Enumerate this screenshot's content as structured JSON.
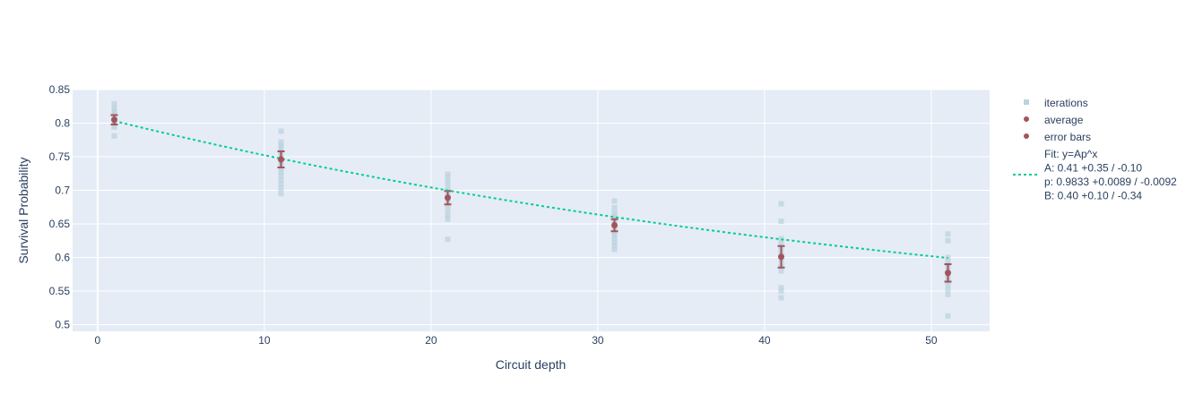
{
  "chart_data": {
    "type": "scatter",
    "xlabel": "Circuit depth",
    "ylabel": "Survival Probability",
    "xlim": [
      -1.5,
      53.5
    ],
    "ylim": [
      0.49,
      0.85
    ],
    "xticks": [
      "0",
      "10",
      "20",
      "30",
      "40",
      "50"
    ],
    "yticks": [
      "0.5",
      "0.55",
      "0.6",
      "0.65",
      "0.7",
      "0.75",
      "0.8",
      "0.85"
    ],
    "grid": true,
    "legend_position": "right",
    "colors": {
      "plot_bg": "#e5ecf6",
      "grid": "#ffffff",
      "iterations": "#bcd3df",
      "average": "#a3545b",
      "error_bars": "#a3545b",
      "fit": "#00cc96"
    },
    "series": [
      {
        "name": "iterations",
        "marker": "square",
        "points": [
          [
            1,
            0.829
          ],
          [
            1,
            0.823
          ],
          [
            1,
            0.818
          ],
          [
            1,
            0.815
          ],
          [
            1,
            0.812
          ],
          [
            1,
            0.809
          ],
          [
            1,
            0.806
          ],
          [
            1,
            0.803
          ],
          [
            1,
            0.8
          ],
          [
            1,
            0.797
          ],
          [
            1,
            0.794
          ],
          [
            1,
            0.781
          ],
          [
            11,
            0.788
          ],
          [
            11,
            0.772
          ],
          [
            11,
            0.768
          ],
          [
            11,
            0.764
          ],
          [
            11,
            0.76
          ],
          [
            11,
            0.756
          ],
          [
            11,
            0.752
          ],
          [
            11,
            0.748
          ],
          [
            11,
            0.744
          ],
          [
            11,
            0.74
          ],
          [
            11,
            0.736
          ],
          [
            11,
            0.732
          ],
          [
            11,
            0.727
          ],
          [
            11,
            0.722
          ],
          [
            11,
            0.716
          ],
          [
            11,
            0.71
          ],
          [
            11,
            0.703
          ],
          [
            11,
            0.695
          ],
          [
            21,
            0.724
          ],
          [
            21,
            0.72
          ],
          [
            21,
            0.714
          ],
          [
            21,
            0.707
          ],
          [
            21,
            0.7
          ],
          [
            21,
            0.694
          ],
          [
            21,
            0.69
          ],
          [
            21,
            0.686
          ],
          [
            21,
            0.682
          ],
          [
            21,
            0.676
          ],
          [
            21,
            0.668
          ],
          [
            21,
            0.662
          ],
          [
            21,
            0.657
          ],
          [
            21,
            0.627
          ],
          [
            31,
            0.684
          ],
          [
            31,
            0.674
          ],
          [
            31,
            0.666
          ],
          [
            31,
            0.662
          ],
          [
            31,
            0.658
          ],
          [
            31,
            0.654
          ],
          [
            31,
            0.65
          ],
          [
            31,
            0.646
          ],
          [
            31,
            0.642
          ],
          [
            31,
            0.637
          ],
          [
            31,
            0.633
          ],
          [
            31,
            0.628
          ],
          [
            31,
            0.622
          ],
          [
            31,
            0.617
          ],
          [
            31,
            0.612
          ],
          [
            41,
            0.68
          ],
          [
            41,
            0.654
          ],
          [
            41,
            0.628
          ],
          [
            41,
            0.622
          ],
          [
            41,
            0.616
          ],
          [
            41,
            0.61
          ],
          [
            41,
            0.604
          ],
          [
            41,
            0.598
          ],
          [
            41,
            0.592
          ],
          [
            41,
            0.586
          ],
          [
            41,
            0.58
          ],
          [
            41,
            0.555
          ],
          [
            41,
            0.55
          ],
          [
            41,
            0.54
          ],
          [
            51,
            0.635
          ],
          [
            51,
            0.625
          ],
          [
            51,
            0.6
          ],
          [
            51,
            0.595
          ],
          [
            51,
            0.59
          ],
          [
            51,
            0.585
          ],
          [
            51,
            0.58
          ],
          [
            51,
            0.575
          ],
          [
            51,
            0.57
          ],
          [
            51,
            0.565
          ],
          [
            51,
            0.56
          ],
          [
            51,
            0.553
          ],
          [
            51,
            0.545
          ],
          [
            51,
            0.513
          ]
        ]
      },
      {
        "name": "average",
        "marker": "circle",
        "x": [
          1,
          11,
          21,
          31,
          41,
          51
        ],
        "y": [
          0.805,
          0.746,
          0.689,
          0.648,
          0.601,
          0.577
        ]
      },
      {
        "name": "error bars",
        "marker": "circle",
        "x": [
          1,
          11,
          21,
          31,
          41,
          51
        ],
        "y": [
          0.805,
          0.746,
          0.689,
          0.648,
          0.601,
          0.577
        ],
        "error": [
          0.007,
          0.012,
          0.01,
          0.009,
          0.016,
          0.013
        ]
      },
      {
        "name": "Fit: y=Ap^x",
        "name_lines": [
          "Fit: y=Ap^x",
          "A: 0.41 +0.35 / -0.10",
          "p: 0.9833 +0.0089 / -0.0092",
          "B: 0.40 +0.10 / -0.34"
        ],
        "line_style": "dotted",
        "x": [
          1,
          3,
          5,
          7,
          9,
          11,
          13,
          15,
          17,
          19,
          21,
          23,
          25,
          27,
          29,
          31,
          33,
          35,
          37,
          39,
          41,
          43,
          45,
          47,
          49,
          51
        ],
        "y": [
          0.8032,
          0.7912,
          0.7796,
          0.7684,
          0.7575,
          0.747,
          0.7369,
          0.7272,
          0.7177,
          0.7086,
          0.6998,
          0.6914,
          0.6832,
          0.6752,
          0.6676,
          0.6602,
          0.6531,
          0.6462,
          0.6396,
          0.6332,
          0.627,
          0.6211,
          0.6154,
          0.6098,
          0.6045,
          0.5993
        ],
        "fit_params": {
          "A": 0.41,
          "p": 0.9833,
          "B": 0.4
        }
      }
    ]
  }
}
